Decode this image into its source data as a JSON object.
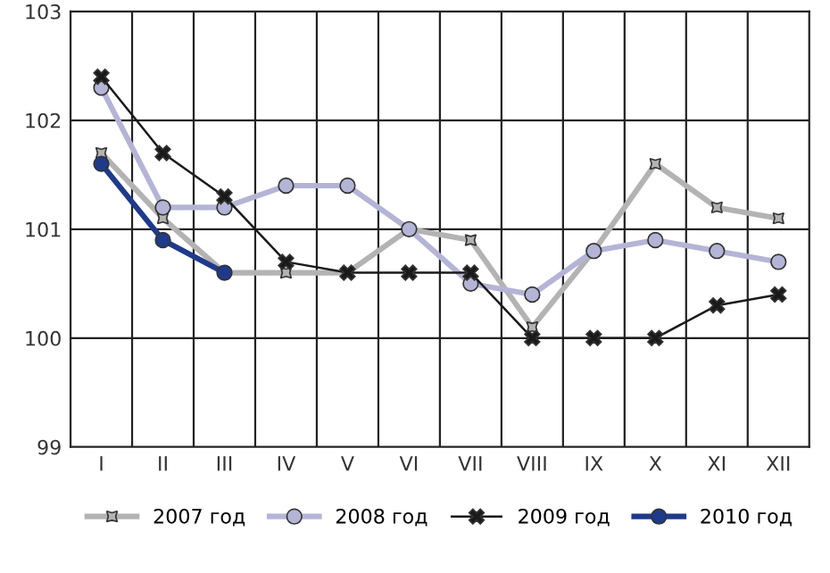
{
  "chart_data": {
    "type": "line",
    "categories": [
      "I",
      "II",
      "III",
      "IV",
      "V",
      "VI",
      "VII",
      "VIII",
      "IX",
      "X",
      "XI",
      "XII"
    ],
    "series": [
      {
        "name": "2007 год",
        "color": "#b3b3b3",
        "marker": "star",
        "values": [
          101.7,
          101.1,
          100.6,
          100.6,
          100.6,
          101.0,
          100.9,
          100.1,
          100.8,
          101.6,
          101.2,
          101.1
        ]
      },
      {
        "name": "2008 год",
        "color": "#b4b4d6",
        "marker": "circle",
        "values": [
          102.3,
          101.2,
          101.2,
          101.4,
          101.4,
          101.0,
          100.5,
          100.4,
          100.8,
          100.9,
          100.8,
          100.7
        ]
      },
      {
        "name": "2009 год",
        "color": "#1a1a1a",
        "marker": "cross",
        "values": [
          102.4,
          101.7,
          101.3,
          100.7,
          100.6,
          100.6,
          100.6,
          100.0,
          100.0,
          100.0,
          100.3,
          100.4
        ]
      },
      {
        "name": "2010 год",
        "color": "#1f3a8a",
        "marker": "circle",
        "values": [
          101.6,
          100.9,
          100.6,
          null,
          null,
          null,
          null,
          null,
          null,
          null,
          null,
          null
        ]
      }
    ],
    "ylim": [
      99,
      103
    ],
    "yticks": [
      99,
      100,
      101,
      102,
      103
    ],
    "grid": true,
    "legend": "bottom",
    "line_style": "solid"
  }
}
